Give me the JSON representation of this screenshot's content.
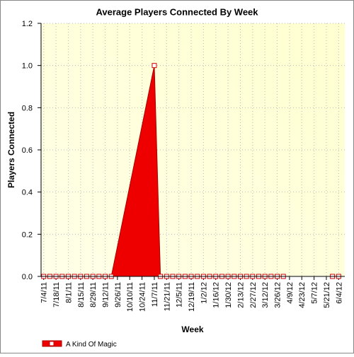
{
  "chart_data": {
    "type": "area",
    "title": "Average Players Connected By Week",
    "x_label": "Week",
    "y_label": "Players Connected",
    "x": [
      "7/4/11",
      "7/11/11",
      "7/18/11",
      "7/25/11",
      "8/1/11",
      "8/8/11",
      "8/15/11",
      "8/22/11",
      "8/29/11",
      "9/5/11",
      "9/12/11",
      "9/19/11",
      "11/7/11",
      "11/14/11",
      "11/21/11",
      "11/28/11",
      "12/5/11",
      "12/12/11",
      "12/19/11",
      "12/26/11",
      "1/2/12",
      "1/9/12",
      "1/16/12",
      "1/23/12",
      "1/30/12",
      "2/6/12",
      "2/13/12",
      "2/20/12",
      "2/27/12",
      "3/5/12",
      "3/12/12",
      "3/19/12",
      "3/26/12",
      "4/2/12",
      "5/28/12",
      "6/4/12"
    ],
    "series": [
      {
        "name": "A Kind Of Magic",
        "color": "#ee0000",
        "values": [
          0,
          0,
          0,
          0,
          0,
          0,
          0,
          0,
          0,
          0,
          0,
          0,
          1,
          0,
          0,
          0,
          0,
          0,
          0,
          0,
          0,
          0,
          0,
          0,
          0,
          0,
          0,
          0,
          0,
          0,
          0,
          0,
          0,
          0,
          0,
          0
        ]
      }
    ],
    "xlim": [
      "7/1/11",
      "6/11/12"
    ],
    "xticks": [
      "7/4/11",
      "7/18/11",
      "8/1/11",
      "8/15/11",
      "8/29/11",
      "9/12/11",
      "9/26/11",
      "10/10/11",
      "10/24/11",
      "11/7/11",
      "11/21/11",
      "12/5/11",
      "12/19/11",
      "1/2/12",
      "1/16/12",
      "1/30/12",
      "2/13/12",
      "2/27/12",
      "3/12/12",
      "3/26/12",
      "4/9/12",
      "4/23/12",
      "5/7/12",
      "5/21/12",
      "6/4/12"
    ],
    "ylim": [
      0,
      1.2
    ],
    "yticks": [
      {
        "value": 0,
        "label": "0.0"
      },
      {
        "value": 0.2,
        "label": "0.2"
      },
      {
        "value": 0.4,
        "label": "0.4"
      },
      {
        "value": 0.6,
        "label": "0.6"
      },
      {
        "value": 0.8,
        "label": "0.8"
      },
      {
        "value": 1,
        "label": "1.0"
      },
      {
        "value": 1.2,
        "label": "1.2"
      }
    ],
    "grid": true
  }
}
